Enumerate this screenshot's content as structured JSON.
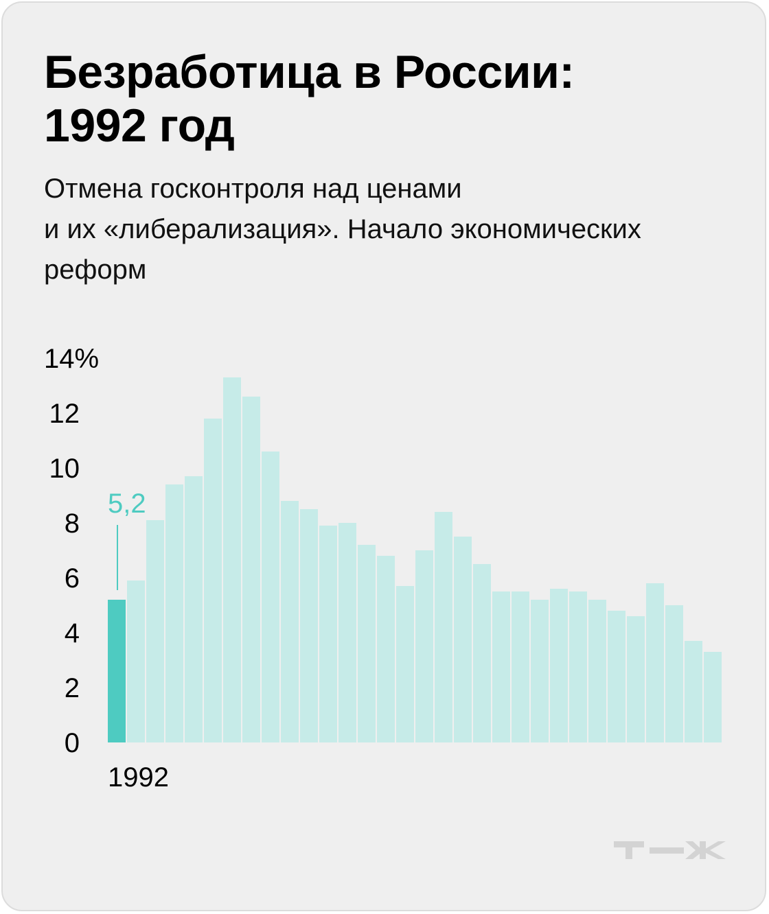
{
  "title": {
    "line1": "Безработица в России:",
    "line2": "1992 год"
  },
  "subtitle": {
    "line1": "Отмена госконтроля над ценами",
    "line2": "и их «либерализация». Начало экономических",
    "line3": "реформ"
  },
  "logo_text": "т—ж",
  "colors": {
    "background": "#efefef",
    "highlight": "#4ecbc1",
    "bar": "#c6ebe8",
    "text": "#000000"
  },
  "chart_data": {
    "type": "bar",
    "x_labels_shown": [
      "1992"
    ],
    "values": [
      5.2,
      5.9,
      8.1,
      9.4,
      9.7,
      11.8,
      13.3,
      12.6,
      10.6,
      8.8,
      8.5,
      7.9,
      8.0,
      7.2,
      6.8,
      5.7,
      7.0,
      8.4,
      7.5,
      6.5,
      5.5,
      5.5,
      5.2,
      5.6,
      5.5,
      5.2,
      4.8,
      4.6,
      5.8,
      5.0,
      3.7,
      3.3
    ],
    "highlight_index": 0,
    "highlight_label": "5,2",
    "y_ticks": [
      "14%",
      "12",
      "10",
      "8",
      "6",
      "4",
      "2",
      "0"
    ],
    "y_tick_values": [
      14,
      12,
      10,
      8,
      6,
      4,
      2,
      0
    ],
    "ylim": [
      0,
      14
    ],
    "grid": false,
    "title": "",
    "xlabel": "",
    "ylabel": ""
  }
}
